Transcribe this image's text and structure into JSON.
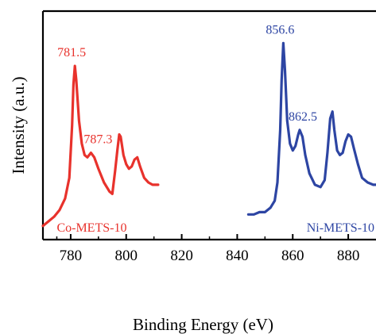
{
  "chart_data": {
    "type": "line",
    "title": "",
    "xlabel": "Binding Energy (eV)",
    "ylabel": "Intensity (a.u.)",
    "xlim": [
      770,
      890
    ],
    "ylim": [
      0,
      1
    ],
    "x_ticks": [
      "780",
      "800",
      "820",
      "840",
      "860",
      "880"
    ],
    "y_ticks_shown": false,
    "grid": false,
    "legend": "none (series labelled inline)",
    "series": [
      {
        "name": "Co-METS-10",
        "color": "#e8322c",
        "label_position": "bottom-left",
        "points": [
          [
            770.0,
            0.06
          ],
          [
            772.0,
            0.08
          ],
          [
            774.0,
            0.1
          ],
          [
            776.0,
            0.13
          ],
          [
            778.0,
            0.18
          ],
          [
            779.5,
            0.27
          ],
          [
            780.5,
            0.5
          ],
          [
            781.0,
            0.68
          ],
          [
            781.5,
            0.76
          ],
          [
            782.0,
            0.7
          ],
          [
            783.0,
            0.52
          ],
          [
            784.0,
            0.42
          ],
          [
            785.0,
            0.37
          ],
          [
            786.0,
            0.36
          ],
          [
            787.3,
            0.38
          ],
          [
            788.5,
            0.36
          ],
          [
            790.0,
            0.31
          ],
          [
            792.0,
            0.25
          ],
          [
            794.0,
            0.21
          ],
          [
            795.0,
            0.2
          ],
          [
            796.0,
            0.3
          ],
          [
            796.8,
            0.39
          ],
          [
            797.5,
            0.46
          ],
          [
            798.0,
            0.45
          ],
          [
            799.0,
            0.37
          ],
          [
            800.0,
            0.33
          ],
          [
            801.0,
            0.31
          ],
          [
            802.0,
            0.32
          ],
          [
            803.0,
            0.35
          ],
          [
            804.0,
            0.36
          ],
          [
            805.0,
            0.32
          ],
          [
            806.5,
            0.27
          ],
          [
            808.0,
            0.25
          ],
          [
            809.5,
            0.24
          ],
          [
            811.0,
            0.24
          ],
          [
            811.5,
            0.24
          ]
        ]
      },
      {
        "name": "Ni-METS-10",
        "color": "#2d45a3",
        "label_position": "bottom-right",
        "points": [
          [
            844.0,
            0.11
          ],
          [
            846.0,
            0.11
          ],
          [
            848.0,
            0.12
          ],
          [
            850.0,
            0.12
          ],
          [
            852.0,
            0.14
          ],
          [
            853.5,
            0.17
          ],
          [
            854.5,
            0.25
          ],
          [
            855.5,
            0.48
          ],
          [
            856.0,
            0.7
          ],
          [
            856.6,
            0.86
          ],
          [
            857.2,
            0.74
          ],
          [
            858.0,
            0.52
          ],
          [
            859.0,
            0.42
          ],
          [
            860.0,
            0.39
          ],
          [
            861.0,
            0.41
          ],
          [
            862.0,
            0.46
          ],
          [
            862.5,
            0.48
          ],
          [
            863.5,
            0.45
          ],
          [
            864.5,
            0.37
          ],
          [
            866.0,
            0.29
          ],
          [
            868.0,
            0.24
          ],
          [
            870.0,
            0.23
          ],
          [
            871.5,
            0.26
          ],
          [
            872.5,
            0.38
          ],
          [
            873.5,
            0.53
          ],
          [
            874.3,
            0.56
          ],
          [
            875.0,
            0.48
          ],
          [
            876.0,
            0.39
          ],
          [
            877.0,
            0.37
          ],
          [
            878.0,
            0.38
          ],
          [
            879.0,
            0.43
          ],
          [
            880.0,
            0.46
          ],
          [
            881.0,
            0.45
          ],
          [
            882.0,
            0.4
          ],
          [
            883.5,
            0.33
          ],
          [
            885.0,
            0.27
          ],
          [
            887.0,
            0.25
          ],
          [
            889.0,
            0.24
          ],
          [
            890.0,
            0.24
          ]
        ]
      }
    ],
    "annotations": [
      {
        "text": "781.5",
        "x": 781.5,
        "y": 0.76,
        "color": "#e8322c"
      },
      {
        "text": "787.3",
        "x": 787.3,
        "y": 0.38,
        "color": "#e8322c"
      },
      {
        "text": "856.6",
        "x": 856.6,
        "y": 0.86,
        "color": "#2d45a3"
      },
      {
        "text": "862.5",
        "x": 862.5,
        "y": 0.48,
        "color": "#2d45a3"
      }
    ]
  }
}
